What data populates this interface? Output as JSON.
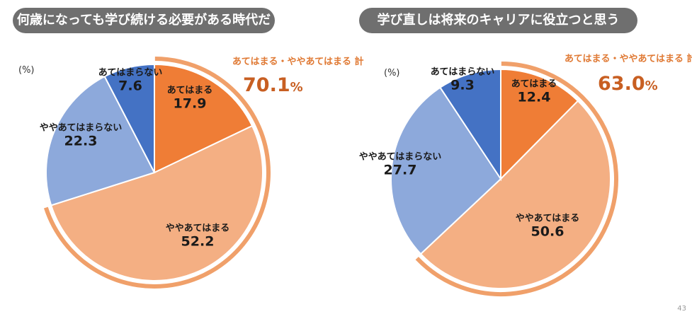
{
  "page_number": "43",
  "colors": {
    "atehamaru": "#ef7d36",
    "yaya_atehamaru": "#f4af83",
    "yaya_atehamaranai": "#8da9db",
    "atehamaranai": "#4472c4",
    "outer_arc": "#f0a06a",
    "pill": "#6f6f6f"
  },
  "chart_data": [
    {
      "type": "pie",
      "title": "何歳になっても学び続ける必要がある時代だ",
      "unit": "(%)",
      "categories": [
        "あてはまる",
        "ややあてはまる",
        "ややあてはまらない",
        "あてはまらない"
      ],
      "values": [
        17.9,
        52.2,
        22.3,
        7.6
      ],
      "value_labels": [
        "17.9",
        "52.2",
        "22.3",
        "7.6"
      ],
      "total_label": "あてはまる・ややあてはまる 計",
      "total_value": "70.1",
      "total_unit": "%"
    },
    {
      "type": "pie",
      "title": "学び直しは将来のキャリアに役立つと思う",
      "unit": "(%)",
      "categories": [
        "あてはまる",
        "ややあてはまる",
        "ややあてはまらない",
        "あてはまらない"
      ],
      "values": [
        12.4,
        50.6,
        27.7,
        9.3
      ],
      "value_labels": [
        "12.4",
        "50.6",
        "27.7",
        "9.3"
      ],
      "total_label": "あてはまる・ややあてはまる 計",
      "total_value": "63.0",
      "total_unit": "%"
    }
  ]
}
